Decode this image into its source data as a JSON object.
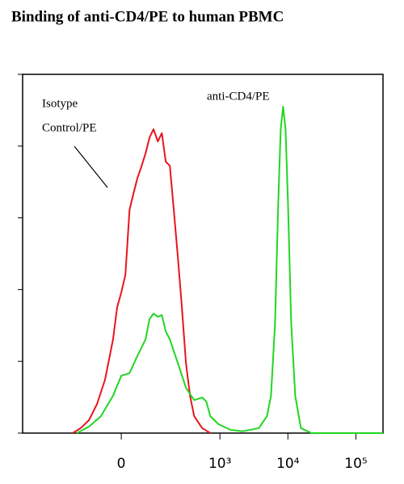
{
  "chart_data": {
    "type": "line",
    "title": "Binding of anti-CD4/PE to human PBMC",
    "annotations": [
      "Isotype",
      "Control/PE",
      "anti-CD4/PE"
    ],
    "xscale": "asinh",
    "xlim": [
      -1000,
      250000
    ],
    "xticks": [
      0,
      {
        "value": 1000,
        "label": "10³"
      },
      {
        "value": 10000,
        "label": "10⁴"
      },
      {
        "value": 100000,
        "label": "10⁵"
      }
    ],
    "ylim": [
      0,
      100
    ],
    "yticks": [
      0,
      20,
      40,
      60,
      80,
      100
    ],
    "series": [
      {
        "name": "Isotype Control/PE",
        "color": "#e8141e",
        "x": [
          -177,
          -131,
          -94,
          -65,
          -41,
          -20,
          -10,
          0,
          10,
          20,
          30,
          41,
          53,
          65,
          79,
          94,
          112,
          131,
          152,
          177,
          204,
          237,
          272,
          314,
          361,
          416,
          547,
          721
        ],
        "values": [
          0,
          1.4,
          3.6,
          8.1,
          14.9,
          26.1,
          35.1,
          39.2,
          44.1,
          62.2,
          66.7,
          71.2,
          74.5,
          77.9,
          82.4,
          84.7,
          81.3,
          83.6,
          75.7,
          74.5,
          62.2,
          48.6,
          35.1,
          19.4,
          10.4,
          4.7,
          1.4,
          0
        ]
      },
      {
        "name": "anti-CD4/PE",
        "color": "#22d622",
        "x": [
          -152,
          -94,
          -53,
          -20,
          0,
          20,
          41,
          65,
          79,
          94,
          112,
          131,
          152,
          177,
          237,
          314,
          416,
          547,
          629,
          721,
          950,
          1434,
          2165,
          3742,
          4920,
          5637,
          6468,
          7221,
          7838,
          8506,
          9237,
          10025,
          11190,
          12830,
          15542,
          22195,
          250000
        ],
        "values": [
          0,
          1.8,
          4.7,
          10.4,
          16.0,
          16.7,
          21.6,
          26.1,
          31.8,
          33.3,
          32.4,
          32.9,
          28.4,
          26.1,
          19.4,
          12.6,
          9.2,
          9.9,
          8.8,
          4.7,
          2.5,
          0.9,
          0.5,
          1.4,
          4.7,
          10.4,
          30.6,
          64.4,
          84.7,
          91.0,
          84.7,
          64.4,
          30.6,
          10.4,
          1.4,
          0,
          0
        ]
      }
    ]
  }
}
